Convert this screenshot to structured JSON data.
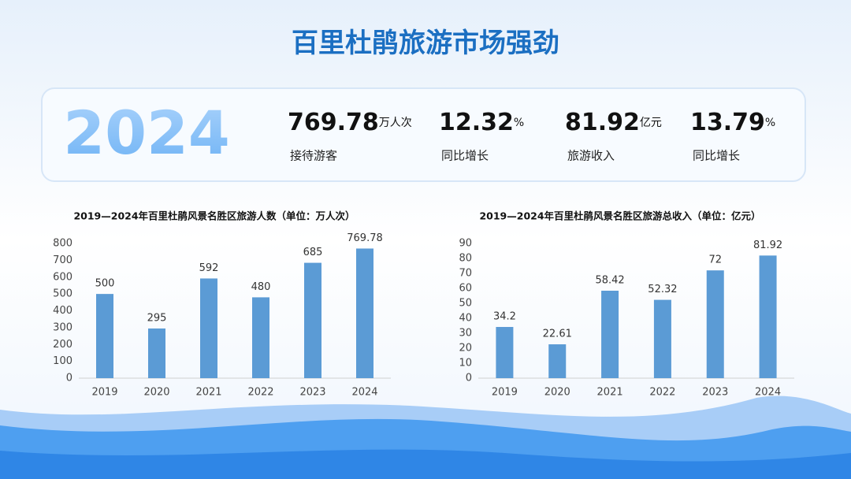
{
  "title": "百里杜鹃旅游市场强劲",
  "summary": {
    "year": 2024,
    "items": [
      {
        "value": 769.78,
        "unit": "万人次",
        "label": "接待游客"
      },
      {
        "value": 12.32,
        "unit": "%",
        "label": "同比增长"
      },
      {
        "value": 81.92,
        "unit": "亿元",
        "label": "旅游收入"
      },
      {
        "value": 13.79,
        "unit": "%",
        "label": "同比增长"
      }
    ]
  },
  "chart_data": [
    {
      "type": "bar",
      "title": "2019—2024年百里杜鹃风景名胜区旅游人数（单位：万人次）",
      "categories": [
        "2019",
        "2020",
        "2021",
        "2022",
        "2023",
        "2024"
      ],
      "values": [
        500,
        295,
        592,
        480,
        685,
        769.78
      ],
      "color": "#5b9bd5",
      "ylim": [
        0,
        800
      ],
      "yticks": [
        0,
        100,
        200,
        300,
        400,
        500,
        600,
        700,
        800
      ]
    },
    {
      "type": "bar",
      "title": "2019—2024年百里杜鹃风景名胜区旅游总收入（单位：亿元）",
      "categories": [
        "2019",
        "2020",
        "2021",
        "2022",
        "2023",
        "2024"
      ],
      "values": [
        34.2,
        22.61,
        58.42,
        52.32,
        72,
        81.92
      ],
      "color": "#5b9bd5",
      "ylim": [
        0,
        90
      ],
      "yticks": [
        0,
        10,
        20,
        30,
        40,
        50,
        60,
        70,
        80,
        90
      ]
    }
  ]
}
